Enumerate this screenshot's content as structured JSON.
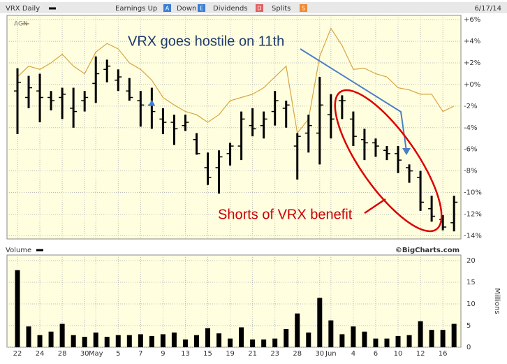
{
  "header": {
    "title": "VRX Daily",
    "items": [
      {
        "label": "Earnings Up",
        "icon": "A"
      },
      {
        "label": "Down",
        "icon": "E"
      },
      {
        "label": "Dividends",
        "icon": "D"
      },
      {
        "label": "Splits",
        "icon": "S"
      }
    ],
    "date": "6/17/14"
  },
  "chart_data": [
    {
      "type": "ohlc",
      "high": [
        1.5,
        0.8,
        1.0,
        -0.6,
        -0.3,
        -0.3,
        -0.6,
        2.6,
        2.3,
        1.4,
        0.6,
        -0.6,
        -0.3,
        -2.2,
        -2.8,
        -2.8,
        -4.5,
        -6.3,
        -6.1,
        -5.4,
        -2.5,
        -2.2,
        -2.5,
        -0.6,
        -1.5,
        -4.5,
        -2.8,
        0.7,
        -0.9,
        -1.0,
        -2.5,
        -4.1,
        -5.0,
        -5.7,
        -5.7,
        -7.4,
        -8.0,
        -10.3,
        -12.1,
        -10.3
      ],
      "low": [
        -4.6,
        -2.2,
        -3.5,
        -2.4,
        -3.2,
        -4.0,
        -2.5,
        -1.7,
        0.2,
        -0.6,
        -1.5,
        -3.9,
        -4.1,
        -4.6,
        -5.6,
        -4.3,
        -6.5,
        -9.3,
        -10.1,
        -7.5,
        -7.0,
        -4.8,
        -5.0,
        -3.8,
        -4.0,
        -8.8,
        -6.3,
        -7.4,
        -5.0,
        -3.2,
        -5.7,
        -7.0,
        -6.7,
        -7.0,
        -8.2,
        -9.1,
        -11.7,
        -12.7,
        -13.5,
        -13.6
      ],
      "open": [
        -0.6,
        -1.2,
        -0.6,
        -1.2,
        -1.2,
        -2.2,
        -1.5,
        0.1,
        1.4,
        0.4,
        -0.6,
        -1.5,
        -1.9,
        -3.2,
        -3.5,
        -3.8,
        -5.1,
        -7.7,
        -7.7,
        -6.4,
        -5.7,
        -3.8,
        -3.8,
        -2.5,
        -2.2,
        -5.7,
        -4.5,
        -4.5,
        -2.8,
        -1.5,
        -3.2,
        -5.1,
        -5.4,
        -6.1,
        -6.4,
        -7.7,
        -8.6,
        -11.5,
        -12.5,
        -12.8
      ],
      "close": [
        0.2,
        -0.3,
        -1.2,
        -1.5,
        -0.9,
        -2.5,
        -1.2,
        1.0,
        1.7,
        0.7,
        -1.2,
        -1.9,
        -2.5,
        -3.5,
        -4.1,
        -3.5,
        -6.4,
        -8.6,
        -6.7,
        -5.7,
        -3.2,
        -4.1,
        -3.2,
        -1.5,
        -1.9,
        -4.8,
        -3.8,
        -1.9,
        -3.2,
        -1.5,
        -4.8,
        -5.4,
        -5.7,
        -6.4,
        -7.0,
        -8.0,
        -10.9,
        -12.2,
        -13.2,
        -10.9
      ],
      "series": [
        {
          "name": "AGN",
          "color": "#d9a441",
          "values": [
            0.7,
            1.7,
            1.4,
            2.0,
            2.8,
            1.7,
            1.0,
            3.0,
            3.8,
            3.3,
            2.0,
            1.4,
            0.4,
            -1.2,
            -1.9,
            -2.5,
            -2.8,
            -3.5,
            -2.8,
            -1.5,
            -1.2,
            -0.9,
            -0.3,
            0.7,
            1.7,
            -4.5,
            -3.2,
            2.6,
            5.2,
            3.6,
            1.4,
            1.5,
            1.0,
            0.7,
            -0.3,
            -0.5,
            -0.9,
            -0.9,
            -2.5,
            -2.0
          ]
        }
      ],
      "earnings_up_index": 12,
      "ylim": [
        -14.3,
        6.4
      ],
      "yticks": [
        {
          "value": 6,
          "label": "+6%"
        },
        {
          "value": 4,
          "label": "+4%"
        },
        {
          "value": 2,
          "label": "+2%"
        },
        {
          "value": 0,
          "label": "+0%"
        },
        {
          "value": -2,
          "label": "-2%"
        },
        {
          "value": -4,
          "label": "-4%"
        },
        {
          "value": -6,
          "label": "-6%"
        },
        {
          "value": -8,
          "label": "-8%"
        },
        {
          "value": -10,
          "label": "-10%"
        },
        {
          "value": -12,
          "label": "-12%"
        },
        {
          "value": -14,
          "label": "-14%"
        }
      ],
      "grid": true,
      "annotations": [
        "VRX goes hostile on 11th",
        "Shorts of VRX benefit"
      ]
    },
    {
      "type": "bar",
      "title": "Volume",
      "credit": "©BigCharts.com",
      "y_label": "Millions",
      "color": "#000000",
      "categories": [
        "22",
        null,
        "24",
        null,
        "28",
        null,
        "30",
        "May",
        null,
        "5",
        null,
        "7",
        null,
        "9",
        null,
        "13",
        null,
        "15",
        null,
        "19",
        null,
        "21",
        null,
        "23",
        null,
        "28",
        null,
        "30",
        "Jun",
        null,
        "4",
        null,
        "6",
        null,
        "10",
        null,
        "12",
        null,
        "16",
        null
      ],
      "values": [
        17.8,
        4.8,
        2.8,
        3.6,
        5.4,
        2.8,
        2.4,
        3.4,
        2.4,
        2.8,
        2.8,
        3.0,
        2.6,
        3.0,
        3.4,
        1.8,
        2.8,
        4.4,
        3.2,
        2.0,
        4.6,
        1.8,
        1.8,
        2.0,
        4.2,
        7.8,
        3.4,
        11.4,
        6.2,
        3.0,
        4.8,
        3.6,
        2.0,
        2.0,
        2.6,
        2.8,
        6.0,
        4.0,
        4.0,
        5.4
      ],
      "ylim": [
        0,
        21.3
      ],
      "yticks": [
        0,
        5,
        10,
        15,
        20
      ],
      "grid": true
    }
  ]
}
